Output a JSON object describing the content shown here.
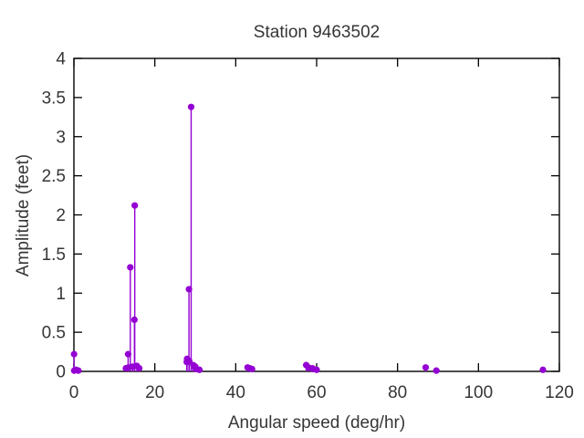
{
  "chart_data": {
    "type": "scatter",
    "subtype": "stem-impulses-with-points",
    "title": "Station 9463502",
    "xlabel": "Angular speed (deg/hr)",
    "ylabel": "Amplitude (feet)",
    "xlim": [
      0,
      120
    ],
    "ylim": [
      0,
      4
    ],
    "x_ticks": [
      0,
      20,
      40,
      60,
      80,
      100,
      120
    ],
    "y_ticks": [
      0,
      0.5,
      1,
      1.5,
      2,
      2.5,
      3,
      3.5,
      4
    ],
    "grid": false,
    "legend": "none",
    "point_color": "#9400d3",
    "points": [
      [
        0.04,
        0.22
      ],
      [
        0.08,
        0.01
      ],
      [
        0.54,
        0.02
      ],
      [
        1.1,
        0.01
      ],
      [
        12.85,
        0.04
      ],
      [
        13.4,
        0.22
      ],
      [
        13.47,
        0.05
      ],
      [
        13.94,
        1.33
      ],
      [
        14.49,
        0.06
      ],
      [
        14.96,
        0.66
      ],
      [
        15.04,
        2.12
      ],
      [
        15.58,
        0.07
      ],
      [
        16.14,
        0.04
      ],
      [
        27.9,
        0.12
      ],
      [
        27.97,
        0.16
      ],
      [
        28.44,
        1.05
      ],
      [
        28.51,
        0.13
      ],
      [
        28.98,
        3.38
      ],
      [
        29.53,
        0.08
      ],
      [
        29.96,
        0.04
      ],
      [
        30.0,
        0.06
      ],
      [
        30.08,
        0.03
      ],
      [
        31.02,
        0.02
      ],
      [
        42.93,
        0.05
      ],
      [
        43.48,
        0.04
      ],
      [
        44.03,
        0.03
      ],
      [
        57.42,
        0.08
      ],
      [
        57.97,
        0.05
      ],
      [
        58.98,
        0.04
      ],
      [
        59.07,
        0.03
      ],
      [
        60.0,
        0.02
      ],
      [
        86.95,
        0.05
      ],
      [
        89.6,
        0.01
      ],
      [
        115.94,
        0.02
      ]
    ]
  },
  "colors": {
    "background": "#ffffff",
    "axis": "#000000",
    "text": "#363636",
    "data": "#9400d3"
  }
}
